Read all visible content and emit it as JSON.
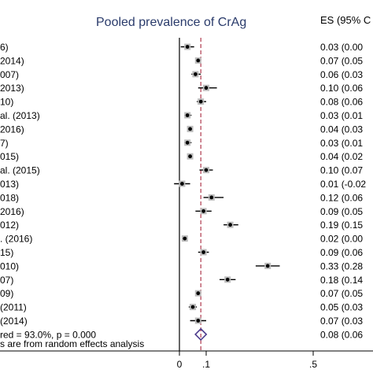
{
  "chart_data": {
    "type": "forest",
    "title": "Pooled prevalence of CrAg",
    "es_header": "ES (95% C",
    "footnote": "s are from random effects analysis",
    "reference_line": 0.08,
    "x_ticks": [
      "0",
      ".1",
      ".5"
    ],
    "studies": [
      {
        "label": "6)",
        "es": 0.03,
        "lo": 0.005,
        "hi": 0.055,
        "es_text": "0.03 (0.00"
      },
      {
        "label": "2014)",
        "es": 0.07,
        "lo": 0.06,
        "hi": 0.08,
        "es_text": "0.07 (0.05"
      },
      {
        "label": "007)",
        "es": 0.06,
        "lo": 0.045,
        "hi": 0.08,
        "es_text": "0.06 (0.03"
      },
      {
        "label": "2013)",
        "es": 0.1,
        "lo": 0.07,
        "hi": 0.14,
        "es_text": "0.10 (0.06"
      },
      {
        "label": "10)",
        "es": 0.08,
        "lo": 0.065,
        "hi": 0.1,
        "es_text": "0.08 (0.06"
      },
      {
        "label": "al. (2013)",
        "es": 0.03,
        "lo": 0.018,
        "hi": 0.045,
        "es_text": "0.03 (0.01"
      },
      {
        "label": "2016)",
        "es": 0.04,
        "lo": 0.03,
        "hi": 0.05,
        "es_text": "0.04 (0.03"
      },
      {
        "label": "7)",
        "es": 0.03,
        "lo": 0.018,
        "hi": 0.045,
        "es_text": "0.03 (0.01"
      },
      {
        "label": "015)",
        "es": 0.04,
        "lo": 0.03,
        "hi": 0.05,
        "es_text": "0.04 (0.02"
      },
      {
        "label": "al. (2015)",
        "es": 0.1,
        "lo": 0.075,
        "hi": 0.125,
        "es_text": "0.10 (0.07"
      },
      {
        "label": "013)",
        "es": 0.01,
        "lo": -0.02,
        "hi": 0.04,
        "es_text": "0.01 (-0.02"
      },
      {
        "label": "018)",
        "es": 0.12,
        "lo": 0.09,
        "hi": 0.165,
        "es_text": "0.12 (0.06"
      },
      {
        "label": "2016)",
        "es": 0.09,
        "lo": 0.06,
        "hi": 0.12,
        "es_text": "0.09 (0.05"
      },
      {
        "label": "012)",
        "es": 0.19,
        "lo": 0.165,
        "hi": 0.22,
        "es_text": "0.19 (0.15"
      },
      {
        "label": ". (2016)",
        "es": 0.02,
        "lo": 0.012,
        "hi": 0.03,
        "es_text": "0.02 (0.00"
      },
      {
        "label": "15)",
        "es": 0.09,
        "lo": 0.07,
        "hi": 0.11,
        "es_text": "0.09 (0.06"
      },
      {
        "label": "010)",
        "es": 0.33,
        "lo": 0.285,
        "hi": 0.375,
        "es_text": "0.33 (0.28"
      },
      {
        "label": "07)",
        "es": 0.18,
        "lo": 0.15,
        "hi": 0.21,
        "es_text": "0.18 (0.14"
      },
      {
        "label": "09)",
        "es": 0.07,
        "lo": 0.06,
        "hi": 0.08,
        "es_text": "0.07 (0.05"
      },
      {
        "label": "(2011)",
        "es": 0.05,
        "lo": 0.035,
        "hi": 0.065,
        "es_text": "0.05 (0.03"
      },
      {
        "label": "(2014)",
        "es": 0.07,
        "lo": 0.04,
        "hi": 0.1,
        "es_text": "0.07 (0.03"
      }
    ],
    "pooled": {
      "label": "red = 93.0%, p = 0.000",
      "es": 0.08,
      "lo": 0.065,
      "hi": 0.1,
      "es_text": "0.08 (0.06"
    }
  }
}
